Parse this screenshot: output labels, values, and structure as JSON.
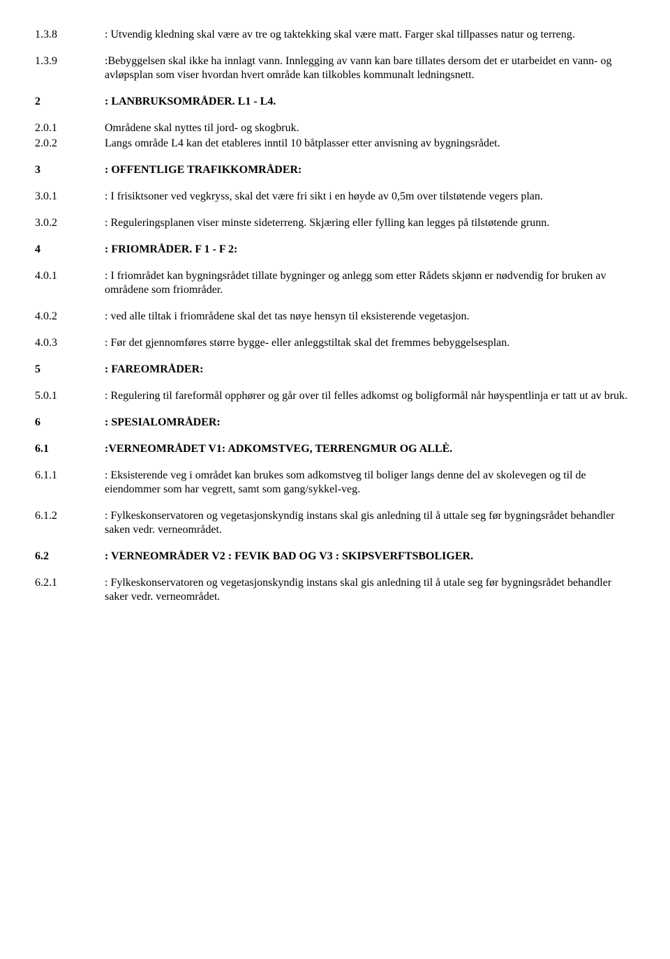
{
  "items": [
    {
      "num": "1.3.8",
      "text": ": Utvendig kledning skal være av tre og taktekking skal være matt. Farger skal tillpasses natur og terreng.",
      "heading": false,
      "tight": false
    },
    {
      "num": "1.3.9",
      "text": ":Bebyggelsen skal ikke ha innlagt vann. Innlegging av vann kan bare tillates dersom det er utarbeidet en vann- og avløpsplan som viser hvordan hvert område kan tilkobles kommunalt ledningsnett.",
      "heading": false,
      "tight": false
    },
    {
      "num": "2",
      "text": ": LANBRUKSOMRÅDER. L1 - L4.",
      "heading": true,
      "tight": false
    },
    {
      "num": "2.0.1",
      "text": "Områdene skal nyttes til jord- og skogbruk.",
      "heading": false,
      "tight": true
    },
    {
      "num": "2.0.2",
      "text": "Langs område L4 kan det etableres inntil 10 båtplasser etter anvisning av bygningsrådet.",
      "heading": false,
      "tight": false
    },
    {
      "num": "3",
      "text": ": OFFENTLIGE TRAFIKKOMRÅDER:",
      "heading": true,
      "tight": false
    },
    {
      "num": "3.0.1",
      "text": ": I frisiktsoner ved vegkryss, skal det være fri sikt i en høyde av 0,5m over tilstøtende vegers  plan.",
      "heading": false,
      "tight": false
    },
    {
      "num": "3.0.2",
      "text": ": Reguleringsplanen viser minste sideterreng. Skjæring eller fylling kan legges på tilstøtende grunn.",
      "heading": false,
      "tight": false
    },
    {
      "num": "4",
      "text": ": FRIOMRÅDER.  F 1 - F 2:",
      "heading": true,
      "tight": false
    },
    {
      "num": "4.0.1",
      "text": ": I friområdet kan bygningsrådet tillate bygninger og anlegg som etter Rådets skjønn er nødvendig for bruken av områdene som friområder.",
      "heading": false,
      "tight": false
    },
    {
      "num": "4.0.2",
      "text": ": ved alle tiltak i friområdene skal det tas nøye hensyn til eksisterende vegetasjon.",
      "heading": false,
      "tight": false
    },
    {
      "num": "4.0.3",
      "text": ": Før det gjennomføres større bygge- eller anleggstiltak skal det fremmes bebyggelsesplan.",
      "heading": false,
      "tight": false
    },
    {
      "num": "5",
      "text": ": FAREOMRÅDER:",
      "heading": true,
      "tight": false
    },
    {
      "num": "5.0.1",
      "text": ": Regulering til fareformål opphører og går over til felles adkomst og boligformål når høyspentlinja er tatt ut av bruk.",
      "heading": false,
      "tight": false
    },
    {
      "num": "6",
      "text": ": SPESIALOMRÅDER:",
      "heading": true,
      "tight": false
    },
    {
      "num": "6.1",
      "text": ":VERNEOMRÅDET  V1: ADKOMSTVEG, TERRENGMUR OG ALLÈ.",
      "heading": true,
      "tight": false
    },
    {
      "num": "6.1.1",
      "text": ": Eksisterende veg i området kan brukes som adkomstveg til boliger langs denne del av skolevegen og til de eiendommer som har vegrett, samt som gang/sykkel-veg.",
      "heading": false,
      "tight": false
    },
    {
      "num": "6.1.2",
      "text": ": Fylkeskonservatoren og vegetasjonskyndig instans skal gis anledning til å uttale seg før bygningsrådet behandler saken vedr. verneområdet.",
      "heading": false,
      "tight": false
    },
    {
      "num": "6.2",
      "text": ": VERNEOMRÅDER  V2 : FEVIK BAD OG  V3 : SKIPSVERFTSBOLIGER.",
      "heading": true,
      "tight": false
    },
    {
      "num": "6.2.1",
      "text": ": Fylkeskonservatoren og vegetasjonskyndig instans skal gis anledning til å utale seg før bygningsrådet behandler saker vedr. verneområdet.",
      "heading": false,
      "tight": false
    }
  ]
}
